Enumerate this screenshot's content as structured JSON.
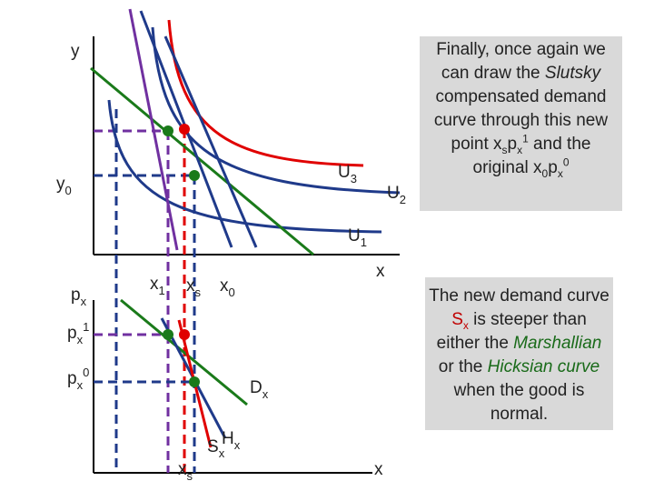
{
  "top_graph": {
    "y_axis_label": {
      "base": "y"
    },
    "y0": {
      "base": "y",
      "sub": "0"
    },
    "U3": {
      "base": "U",
      "sub": "3"
    },
    "U2": {
      "base": "U",
      "sub": "2"
    },
    "U1": {
      "base": "U",
      "sub": "1"
    },
    "x_axis_label": {
      "base": "x"
    },
    "x1": {
      "base": "x",
      "sub": "1"
    },
    "xs": {
      "base": "x",
      "sub": "s"
    },
    "x0": {
      "base": "x",
      "sub": "0"
    }
  },
  "bottom_graph": {
    "px": {
      "base": "p",
      "sub": "x"
    },
    "px1": {
      "base": "p",
      "sub": "x",
      "sup": "1"
    },
    "px0": {
      "base": "p",
      "sub": "x",
      "sup": "0"
    },
    "Dx": {
      "base": "D",
      "sub": "x"
    },
    "Hx": {
      "base": "H",
      "sub": "x"
    },
    "Sx": {
      "base": "S",
      "sub": "x"
    },
    "xs": {
      "base": "x",
      "sub": "s"
    },
    "x_axis_label": {
      "base": "x"
    }
  },
  "note_1": {
    "segments": [
      {
        "text": "Finally, once again we can draw the "
      },
      {
        "text": "Slutsky",
        "italic": true
      },
      {
        "text": " compensated demand curve through this new point x"
      },
      {
        "text": "s",
        "pos": "sub"
      },
      {
        "text": "p"
      },
      {
        "text": "x",
        "pos": "sub"
      },
      {
        "text": "1",
        "pos": "sup"
      },
      {
        "text": " and the original x"
      },
      {
        "text": "0",
        "pos": "sub"
      },
      {
        "text": "p"
      },
      {
        "text": "x",
        "pos": "sub"
      },
      {
        "text": "0",
        "pos": "sup"
      }
    ]
  },
  "note_2": {
    "segments": [
      {
        "text": "The new demand curve "
      },
      {
        "text": "S",
        "color": "#c00000"
      },
      {
        "text": "x",
        "pos": "sub",
        "color": "#c00000"
      },
      {
        "text": " is steeper than either the "
      },
      {
        "text": "Marshallian",
        "italic": true,
        "color": "#1a6b1a"
      },
      {
        "text": " or the "
      },
      {
        "text": "Hicksian curve",
        "italic": true,
        "color": "#1a6b1a"
      },
      {
        "text": " when the good is normal."
      }
    ]
  }
}
